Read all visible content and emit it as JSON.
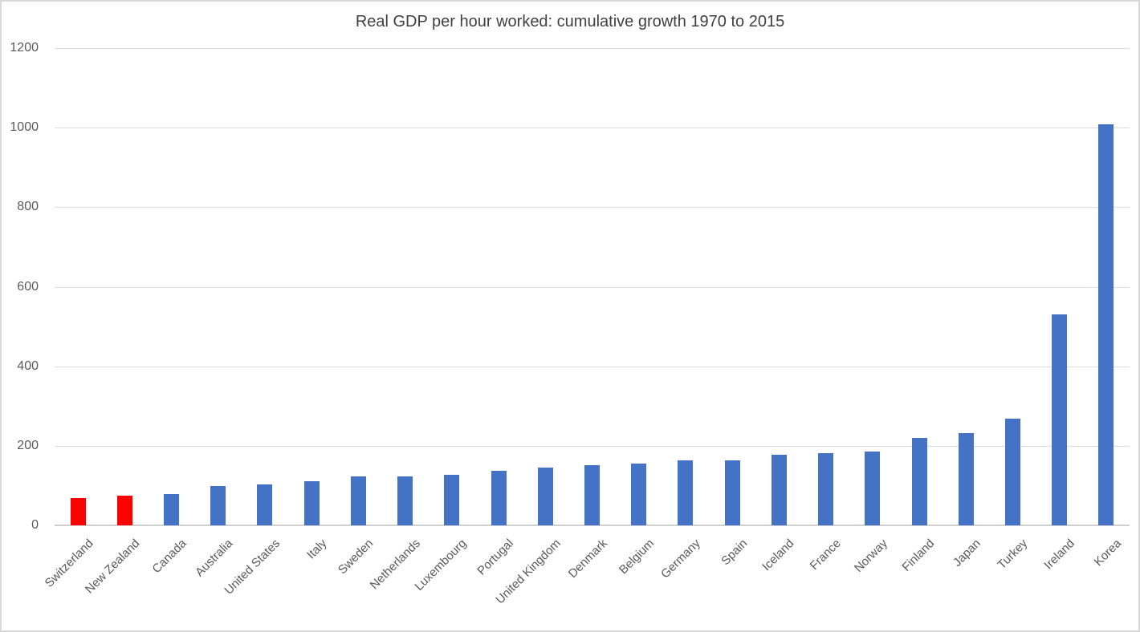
{
  "chart_data": {
    "type": "bar",
    "title": "Real GDP per hour worked: cumulative growth 1970 to 2015",
    "categories": [
      "Switzerland",
      "New Zealand",
      "Canada",
      "Australia",
      "United States",
      "Italy",
      "Sweden",
      "Netherlands",
      "Luxembourg",
      "Portugal",
      "United Kingdom",
      "Denmark",
      "Belgium",
      "Germany",
      "Spain",
      "Iceland",
      "France",
      "Norway",
      "Finland",
      "Japan",
      "Turkey",
      "Ireland",
      "Korea"
    ],
    "values": [
      69,
      75,
      79,
      99,
      102,
      110,
      124,
      124,
      128,
      138,
      145,
      152,
      156,
      164,
      164,
      178,
      181,
      185,
      220,
      231,
      268,
      530,
      1008
    ],
    "highlighted_categories": [
      "Switzerland",
      "New Zealand"
    ],
    "xlabel": "",
    "ylabel": "",
    "ylim": [
      0,
      1200
    ],
    "yticks": [
      0,
      200,
      400,
      600,
      800,
      1000,
      1200
    ],
    "grid": "horizontal",
    "legend": "none"
  },
  "colors": {
    "bar_default": "#4472C4",
    "bar_highlight": "#FF0000",
    "title_text": "#404040",
    "axis_text": "#595959",
    "gridline": "#DCDCDC",
    "axis_line": "#D0D0D0"
  }
}
